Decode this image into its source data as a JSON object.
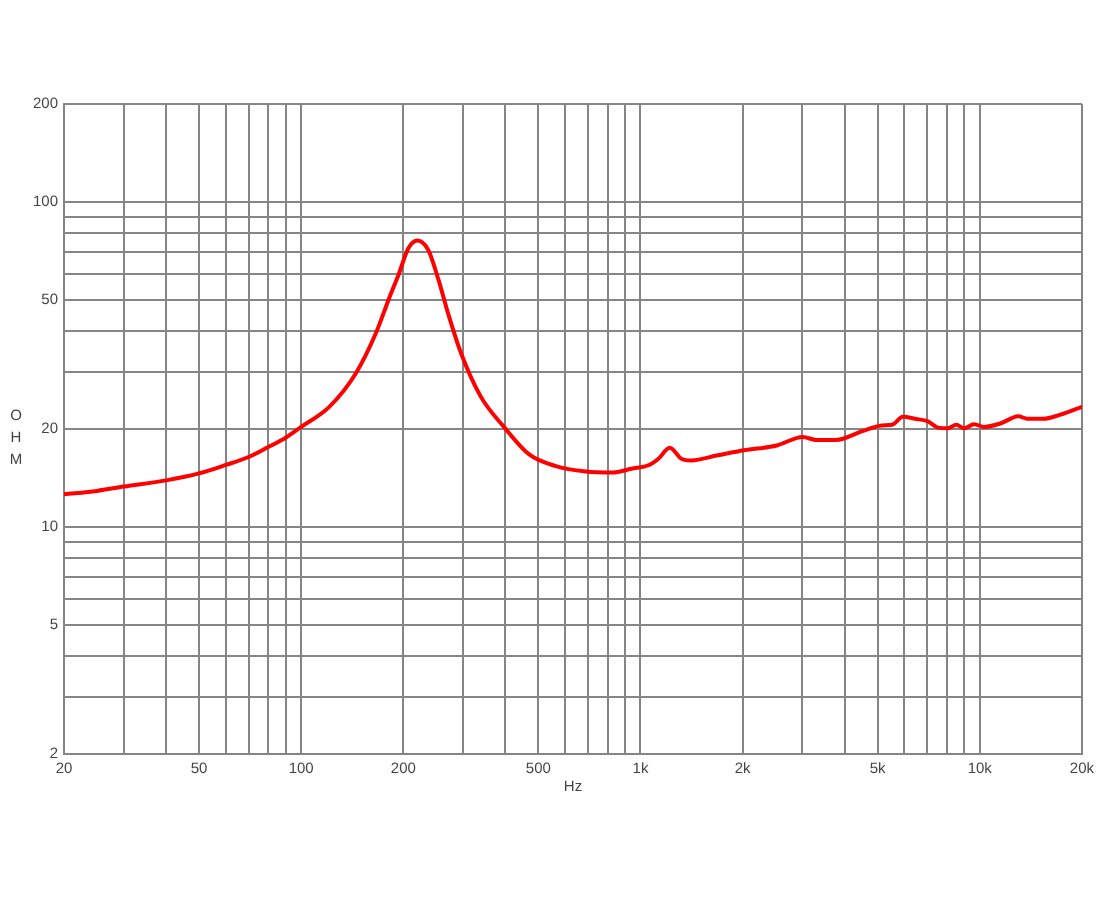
{
  "chart_data": {
    "type": "line",
    "xlabel": "Hz",
    "ylabel": "OHM",
    "log": "xy",
    "grid": true,
    "marker": "none",
    "line_style": "solid",
    "color": "#ff0000",
    "x": [
      20,
      25,
      30,
      40,
      50,
      60,
      70,
      80,
      90,
      100,
      121,
      145,
      166,
      181,
      194,
      207,
      220,
      237,
      254,
      271,
      296,
      338,
      396,
      470,
      560,
      690,
      830,
      940,
      1060,
      1130,
      1220,
      1320,
      1410,
      1690,
      2020,
      2520,
      3010,
      3300,
      3770,
      4510,
      5150,
      5510,
      5940,
      6440,
      7040,
      7530,
      8050,
      8530,
      9000,
      9620,
      10300,
      11500,
      13000,
      13800,
      15400,
      17200,
      20000
    ],
    "values": [
      12.6,
      12.9,
      13.3,
      13.9,
      14.6,
      15.5,
      16.4,
      17.6,
      18.8,
      20.3,
      23.4,
      29.7,
      39.4,
      50,
      60,
      72,
      76,
      71,
      57.5,
      45.4,
      34.2,
      25.2,
      20.3,
      16.7,
      15.4,
      14.8,
      14.7,
      15.1,
      15.5,
      16.2,
      17.5,
      16.2,
      16.0,
      16.6,
      17.2,
      17.8,
      18.9,
      18.5,
      18.5,
      19.7,
      20.5,
      20.6,
      21.8,
      21.5,
      21.1,
      20.2,
      20.1,
      20.6,
      20.1,
      20.7,
      20.3,
      20.8,
      21.9,
      21.5,
      21.5,
      22.1,
      23.4
    ],
    "xlim": [
      20,
      20000
    ],
    "ylim": [
      2,
      200
    ],
    "xticks": [
      20,
      {
        "value": 30,
        "label": null
      },
      {
        "value": 40,
        "label": null
      },
      50,
      {
        "value": 60,
        "label": null
      },
      {
        "value": 70,
        "label": null
      },
      {
        "value": 80,
        "label": null
      },
      {
        "value": 90,
        "label": null
      },
      100,
      200,
      {
        "value": 300,
        "label": null
      },
      {
        "value": 400,
        "label": null
      },
      500,
      {
        "value": 600,
        "label": null
      },
      {
        "value": 700,
        "label": null
      },
      {
        "value": 800,
        "label": null
      },
      {
        "value": 900,
        "label": null
      },
      {
        "value": 1000,
        "label": "1k"
      },
      {
        "value": 2000,
        "label": "2k"
      },
      {
        "value": 3000,
        "label": null
      },
      {
        "value": 4000,
        "label": null
      },
      {
        "value": 5000,
        "label": "5k"
      },
      {
        "value": 6000,
        "label": null
      },
      {
        "value": 7000,
        "label": null
      },
      {
        "value": 8000,
        "label": null
      },
      {
        "value": 9000,
        "label": null
      },
      {
        "value": 10000,
        "label": "10k"
      },
      {
        "value": 20000,
        "label": "20k"
      }
    ],
    "yticks": [
      2,
      {
        "value": 3,
        "label": null
      },
      {
        "value": 4,
        "label": null
      },
      5,
      {
        "value": 6,
        "label": null
      },
      {
        "value": 7,
        "label": null
      },
      {
        "value": 8,
        "label": null
      },
      {
        "value": 9,
        "label": null
      },
      10,
      20,
      {
        "value": 30,
        "label": null
      },
      {
        "value": 40,
        "label": null
      },
      50,
      {
        "value": 60,
        "label": null
      },
      {
        "value": 70,
        "label": null
      },
      {
        "value": 80,
        "label": null
      },
      {
        "value": 90,
        "label": null
      },
      100,
      200
    ]
  }
}
